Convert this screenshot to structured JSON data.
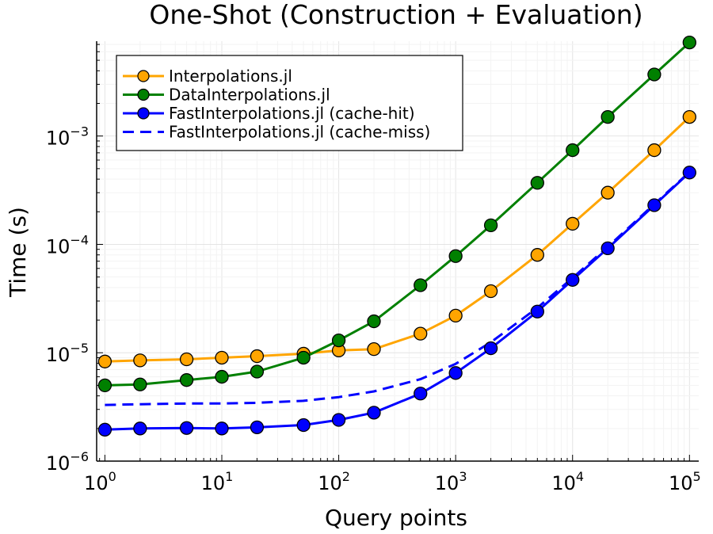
{
  "chart_data": {
    "type": "line",
    "title": "One-Shot (Construction + Evaluation)",
    "xlabel": "Query points",
    "ylabel": "Time (s)",
    "xscale": "log",
    "yscale": "log",
    "xlim": [
      0.85,
      120000
    ],
    "ylim": [
      1e-06,
      0.0075
    ],
    "x_ticks": [
      {
        "value": 1,
        "base": "10",
        "exp": "0"
      },
      {
        "value": 10,
        "base": "10",
        "exp": "1"
      },
      {
        "value": 100,
        "base": "10",
        "exp": "2"
      },
      {
        "value": 1000,
        "base": "10",
        "exp": "3"
      },
      {
        "value": 10000,
        "base": "10",
        "exp": "4"
      },
      {
        "value": 100000,
        "base": "10",
        "exp": "5"
      }
    ],
    "y_ticks": [
      {
        "value": 1e-06,
        "base": "10",
        "exp": "−6"
      },
      {
        "value": 1e-05,
        "base": "10",
        "exp": "−5"
      },
      {
        "value": 0.0001,
        "base": "10",
        "exp": "−4"
      },
      {
        "value": 0.001,
        "base": "10",
        "exp": "−3"
      }
    ],
    "grid": true,
    "legend_position": "top-left",
    "x": [
      1,
      2,
      5,
      10,
      20,
      50,
      100,
      200,
      500,
      1000,
      2000,
      5000,
      10000,
      20000,
      50000,
      100000
    ],
    "series": [
      {
        "name": "Interpolations.jl",
        "color": "#ffa500",
        "style": "solid",
        "markers": true,
        "values": [
          8.3e-06,
          8.5e-06,
          8.7e-06,
          9e-06,
          9.3e-06,
          9.8e-06,
          1.05e-05,
          1.08e-05,
          1.5e-05,
          2.2e-05,
          3.7e-05,
          8e-05,
          0.000155,
          0.0003,
          0.00074,
          0.0015
        ]
      },
      {
        "name": "DataInterpolations.jl",
        "color": "#008000",
        "style": "solid",
        "markers": true,
        "values": [
          5e-06,
          5.1e-06,
          5.6e-06,
          6e-06,
          6.7e-06,
          9e-06,
          1.3e-05,
          1.95e-05,
          4.2e-05,
          7.8e-05,
          0.00015,
          0.00037,
          0.00074,
          0.0015,
          0.0037,
          0.0073
        ]
      },
      {
        "name": "FastInterpolations.jl (cache-hit)",
        "color": "#0000ff",
        "style": "solid",
        "markers": true,
        "values": [
          1.95e-06,
          2e-06,
          2.02e-06,
          2e-06,
          2.05e-06,
          2.15e-06,
          2.4e-06,
          2.8e-06,
          4.2e-06,
          6.5e-06,
          1.1e-05,
          2.4e-05,
          4.7e-05,
          9.2e-05,
          0.00023,
          0.00046
        ]
      },
      {
        "name": "FastInterpolations.jl (cache-miss)",
        "color": "#0000ff",
        "style": "dashed",
        "markers": false,
        "values": [
          3.3e-06,
          3.35e-06,
          3.4e-06,
          3.4e-06,
          3.45e-06,
          3.6e-06,
          3.9e-06,
          4.4e-06,
          5.7e-06,
          7.9e-06,
          1.25e-05,
          2.6e-05,
          4.9e-05,
          9.5e-05,
          0.000235,
          0.000465
        ]
      }
    ]
  }
}
